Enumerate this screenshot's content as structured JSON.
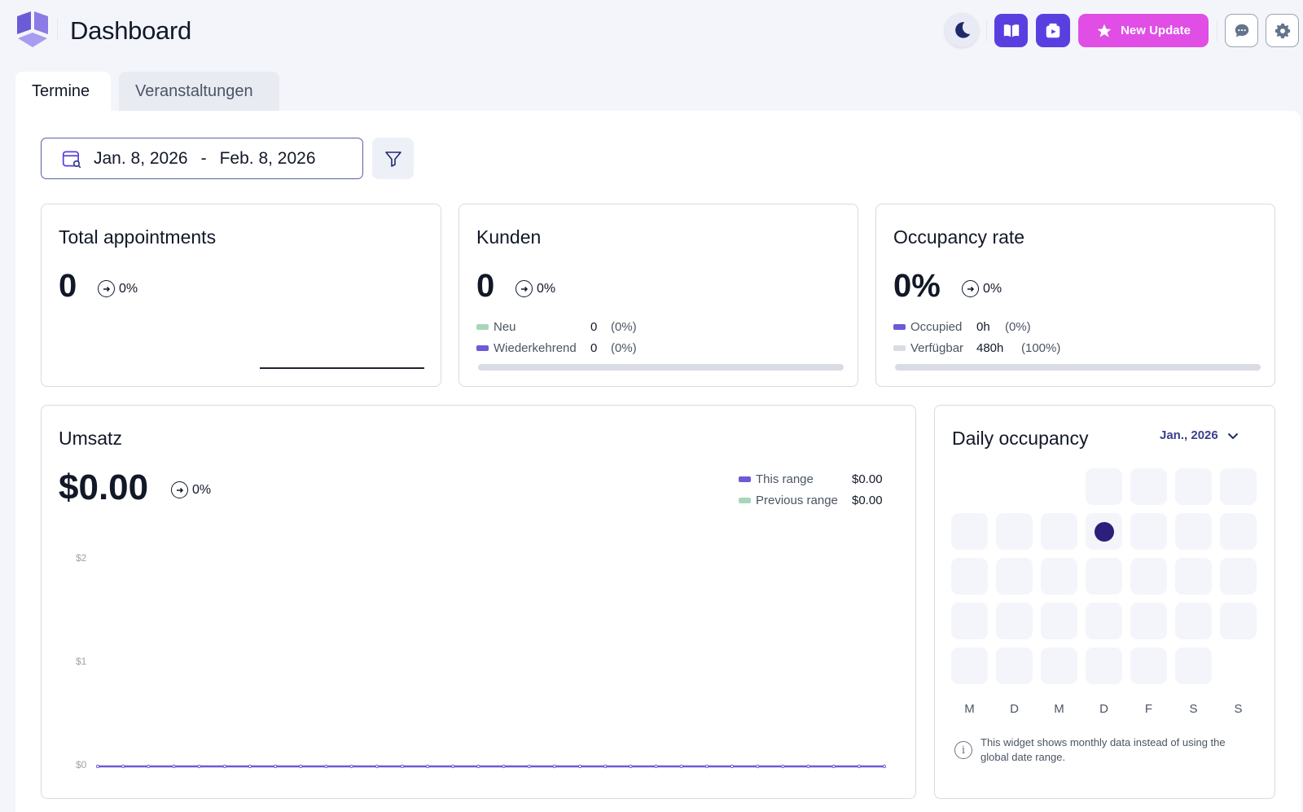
{
  "header": {
    "title": "Dashboard",
    "new_update_label": "New Update",
    "accent": "#5a3fe0",
    "update_color": "#e04ee6"
  },
  "tabs": [
    {
      "label": "Termine",
      "active": true
    },
    {
      "label": "Veranstaltungen",
      "active": false
    }
  ],
  "date_range": {
    "start": "Jan. 8, 2026",
    "separator": "-",
    "end": "Feb. 8, 2026"
  },
  "cards": {
    "total_appointments": {
      "title": "Total appointments",
      "value": "0",
      "trend": "0%"
    },
    "kunden": {
      "title": "Kunden",
      "value": "0",
      "trend": "0%",
      "legend": [
        {
          "label": "Neu",
          "value": "0",
          "pct": "(0%)",
          "color": "#a7d7b8"
        },
        {
          "label": "Wiederkehrend",
          "value": "0",
          "pct": "(0%)",
          "color": "#6b5bd6"
        }
      ],
      "progress": 0
    },
    "occupancy": {
      "title": "Occupancy rate",
      "value": "0%",
      "trend": "0%",
      "legend": [
        {
          "label": "Occupied",
          "value": "0h",
          "pct": "(0%)",
          "color": "#6b5bd6"
        },
        {
          "label": "Verfügbar",
          "value": "480h",
          "pct": "(100%)",
          "color": "#d9dce3"
        }
      ],
      "progress": 0
    }
  },
  "revenue": {
    "title": "Umsatz",
    "value": "$0.00",
    "trend": "0%",
    "legend": [
      {
        "label": "This range",
        "value": "$0.00",
        "color": "#6b5bd6"
      },
      {
        "label": "Previous range",
        "value": "$0.00",
        "color": "#a7d7b8"
      }
    ],
    "chart_data": {
      "type": "line",
      "yticks": [
        "$2",
        "$1",
        "$0"
      ],
      "ylim": [
        0,
        2
      ],
      "series": [
        {
          "name": "This range",
          "values": [
            0,
            0,
            0,
            0,
            0,
            0,
            0,
            0,
            0,
            0,
            0,
            0,
            0,
            0,
            0,
            0,
            0,
            0,
            0,
            0,
            0,
            0,
            0,
            0,
            0,
            0,
            0,
            0,
            0,
            0,
            0,
            0
          ]
        }
      ]
    }
  },
  "daily_occupancy": {
    "title": "Daily occupancy",
    "month": "Jan., 2026",
    "weekdays": [
      "M",
      "D",
      "M",
      "D",
      "F",
      "S",
      "S"
    ],
    "first_weekday_index": 3,
    "days_in_month": 31,
    "highlight_day": 8,
    "info_text": "This widget shows monthly data instead of using the global date range."
  }
}
